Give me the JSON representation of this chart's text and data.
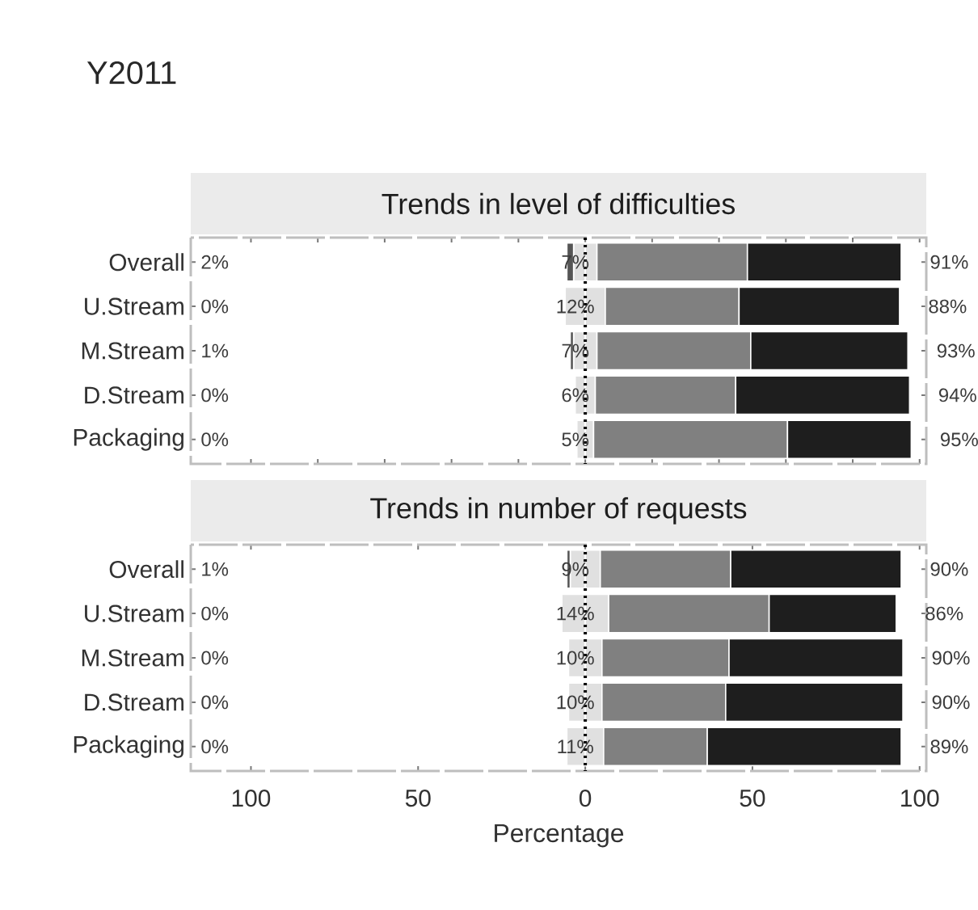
{
  "chart_data": [
    {
      "type": "bar",
      "orientation": "horizontal",
      "stacked": true,
      "title": "Trends in level of difficulties",
      "categories": [
        "Overall",
        "U.Stream",
        "M.Stream",
        "D.Stream",
        "Packaging"
      ],
      "series": [
        {
          "color": "#e0e0e0",
          "values": [
            -3.5,
            -6,
            -3.5,
            -3,
            -2.5
          ]
        },
        {
          "color": "#555555",
          "values": [
            -2,
            0,
            -1,
            0,
            0
          ]
        },
        {
          "color": "#e0e0e0",
          "values": [
            3.5,
            6,
            3.5,
            3,
            2.5
          ]
        },
        {
          "color": "#808080",
          "values": [
            45,
            40,
            46,
            42,
            58
          ]
        },
        {
          "color": "#1e1e1e",
          "values": [
            46,
            48,
            47,
            52,
            37
          ]
        }
      ],
      "annotations": [
        "Y2011",
        "2%",
        "0%",
        "1%",
        "0%",
        "0%",
        {
          "text": "7%",
          "x": 0,
          "y": "Overall"
        },
        {
          "text": "12%",
          "x": 0,
          "y": "U.Stream"
        },
        {
          "text": "7%",
          "x": 0,
          "y": "M.Stream"
        },
        {
          "text": "6%",
          "x": 0,
          "y": "D.Stream"
        },
        {
          "text": "5%",
          "x": 0,
          "y": "Packaging"
        },
        {
          "text": "91%",
          "x": 94.5,
          "y": "Overall"
        },
        {
          "text": "88%",
          "x": 94,
          "y": "U.Stream"
        },
        {
          "text": "93%",
          "x": 96.5,
          "y": "M.Stream"
        },
        {
          "text": "94%",
          "x": 97,
          "y": "D.Stream"
        },
        {
          "text": "95%",
          "x": 97.5,
          "y": "Packaging"
        }
      ],
      "xlim": [
        -118,
        102
      ],
      "ref_lines": [
        {
          "axis": "x",
          "value": 0,
          "line_style": "dotted"
        }
      ],
      "tick_labels": "y"
    },
    {
      "type": "bar",
      "orientation": "horizontal",
      "stacked": true,
      "title": "Trends in number of requests",
      "xlabel": "Percentage",
      "categories": [
        "Overall",
        "U.Stream",
        "M.Stream",
        "D.Stream",
        "Packaging"
      ],
      "series": [
        {
          "color": "#e0e0e0",
          "values": [
            -4.5,
            -7,
            -5,
            -5,
            -5.5
          ]
        },
        {
          "color": "#555555",
          "values": [
            -1,
            0,
            0,
            0,
            0
          ]
        },
        {
          "color": "#e0e0e0",
          "values": [
            4.5,
            7,
            5,
            5,
            5.5
          ]
        },
        {
          "color": "#808080",
          "values": [
            39,
            48,
            38,
            37,
            31
          ]
        },
        {
          "color": "#1e1e1e",
          "values": [
            51,
            38,
            52,
            53,
            58
          ]
        }
      ],
      "annotations": [
        "1%",
        "0%",
        "0%",
        "0%",
        "0%",
        {
          "text": "9%",
          "x": 0,
          "y": "Overall"
        },
        {
          "text": "14%",
          "x": 0,
          "y": "U.Stream"
        },
        {
          "text": "10%",
          "x": 0,
          "y": "M.Stream"
        },
        {
          "text": "10%",
          "x": 0,
          "y": "D.Stream"
        },
        {
          "text": "11%",
          "x": 0,
          "y": "Packaging"
        },
        {
          "text": "90%",
          "x": 94.5,
          "y": "Overall"
        },
        {
          "text": "86%",
          "x": 93,
          "y": "U.Stream"
        },
        {
          "text": "90%",
          "x": 95,
          "y": "M.Stream"
        },
        {
          "text": "90%",
          "x": 95,
          "y": "D.Stream"
        },
        {
          "text": "89%",
          "x": 94.5,
          "y": "Packaging"
        }
      ],
      "xlim": [
        -118,
        102
      ],
      "xticks": [
        {
          "value": -100,
          "label": "100"
        },
        {
          "value": -50,
          "label": "50"
        },
        0,
        50,
        100
      ],
      "ref_lines": [
        {
          "axis": "x",
          "value": 0,
          "line_style": "dotted"
        }
      ]
    }
  ]
}
